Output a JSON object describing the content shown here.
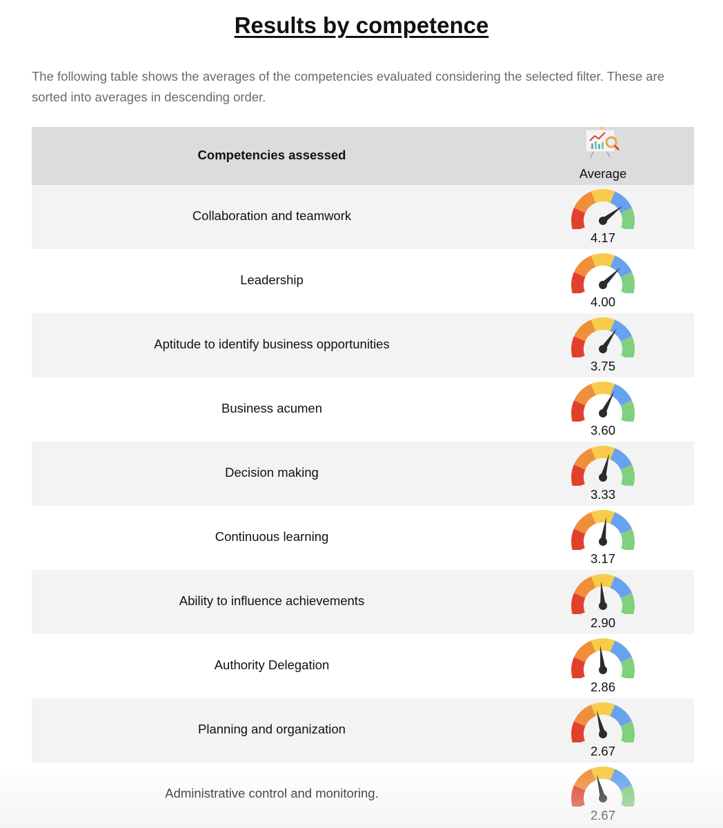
{
  "title": "Results by competence",
  "intro": "The following table shows the averages of the competencies evaluated considering the selected filter. These are sorted into averages in descending order.",
  "table": {
    "header_name": "Competencies assessed",
    "header_avg": "Average",
    "header_icon": "chart-presentation-icon",
    "scale": {
      "min": 1,
      "max": 5
    },
    "gauge_colors": [
      "#e0412c",
      "#ef8f3a",
      "#f8cc4a",
      "#66a2ef",
      "#7fd07f"
    ],
    "rows": [
      {
        "name": "Collaboration and teamwork",
        "value": 4.17,
        "display": "4.17"
      },
      {
        "name": "Leadership",
        "value": 4.0,
        "display": "4.00"
      },
      {
        "name": "Aptitude to identify business opportunities",
        "value": 3.75,
        "display": "3.75"
      },
      {
        "name": "Business acumen",
        "value": 3.6,
        "display": "3.60"
      },
      {
        "name": "Decision making",
        "value": 3.33,
        "display": "3.33"
      },
      {
        "name": "Continuous learning",
        "value": 3.17,
        "display": "3.17"
      },
      {
        "name": "Ability to influence achievements",
        "value": 2.9,
        "display": "2.90"
      },
      {
        "name": "Authority Delegation",
        "value": 2.86,
        "display": "2.86"
      },
      {
        "name": "Planning and organization",
        "value": 2.67,
        "display": "2.67"
      },
      {
        "name": "Administrative control and monitoring.",
        "value": 2.67,
        "display": "2.67"
      }
    ]
  }
}
